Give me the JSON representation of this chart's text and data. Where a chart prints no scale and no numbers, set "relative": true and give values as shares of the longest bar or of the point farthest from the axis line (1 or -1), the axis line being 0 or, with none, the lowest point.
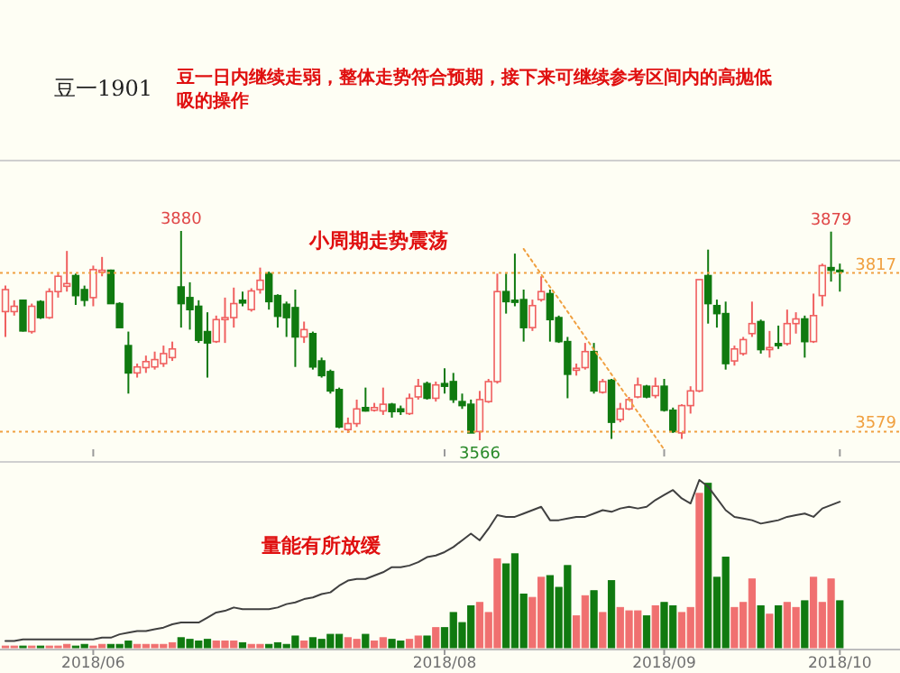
{
  "chart_data": [
    {
      "type": "candlestick",
      "title": "豆一1901",
      "subtitle": "豆一日内继续走弱，整体走势符合预期，接下来可继续参考区间内的高抛低吸的操作",
      "tick_labels": false,
      "categories": [
        null,
        null,
        null,
        null,
        null,
        null,
        null,
        null,
        null,
        null,
        "2018/06",
        null,
        null,
        null,
        null,
        null,
        null,
        null,
        null,
        null,
        null,
        null,
        null,
        null,
        null,
        null,
        null,
        null,
        null,
        null,
        null,
        null,
        null,
        null,
        null,
        null,
        null,
        null,
        null,
        null,
        null,
        null,
        null,
        null,
        null,
        null,
        null,
        null,
        null,
        null,
        "2018/08",
        null,
        null,
        null,
        null,
        null,
        null,
        null,
        null,
        null,
        null,
        null,
        null,
        null,
        null,
        null,
        null,
        null,
        null,
        null,
        null,
        null,
        null,
        null,
        null,
        "2018/09",
        null,
        null,
        null,
        null,
        null,
        null,
        null,
        null,
        null,
        null,
        null,
        null,
        null,
        null,
        null,
        null,
        null,
        null,
        null,
        "2018/10"
      ],
      "ohlc": [
        [
          3759,
          3798,
          3721,
          3792
        ],
        [
          3759,
          3776,
          3753,
          3767
        ],
        [
          3776,
          3777,
          3729,
          3730
        ],
        [
          3729,
          3771,
          3726,
          3767
        ],
        [
          3774,
          3776,
          3748,
          3750
        ],
        [
          3750,
          3794,
          3748,
          3789
        ],
        [
          3789,
          3816,
          3780,
          3812
        ],
        [
          3797,
          3850,
          3789,
          3801
        ],
        [
          3813,
          3816,
          3769,
          3783
        ],
        [
          3792,
          3798,
          3767,
          3776
        ],
        [
          3780,
          3828,
          3767,
          3822
        ],
        [
          3818,
          3841,
          3812,
          3821
        ],
        [
          3821,
          3822,
          3771,
          3771
        ],
        [
          3771,
          3773,
          3735,
          3735
        ],
        [
          3708,
          3729,
          3636,
          3667
        ],
        [
          3667,
          3681,
          3660,
          3676
        ],
        [
          3675,
          3693,
          3667,
          3684
        ],
        [
          3676,
          3699,
          3672,
          3687
        ],
        [
          3681,
          3708,
          3676,
          3696
        ],
        [
          3690,
          3714,
          3685,
          3703
        ],
        [
          3796,
          3880,
          3735,
          3771
        ],
        [
          3780,
          3803,
          3732,
          3762
        ],
        [
          3767,
          3776,
          3712,
          3716
        ],
        [
          3729,
          3758,
          3660,
          3712
        ],
        [
          3714,
          3753,
          3712,
          3747
        ],
        [
          3747,
          3780,
          3712,
          3750
        ],
        [
          3750,
          3795,
          3735,
          3771
        ],
        [
          3776,
          3789,
          3767,
          3772
        ],
        [
          3762,
          3794,
          3759,
          3790
        ],
        [
          3792,
          3825,
          3786,
          3806
        ],
        [
          3816,
          3819,
          3762,
          3774
        ],
        [
          3783,
          3785,
          3735,
          3752
        ],
        [
          3770,
          3774,
          3721,
          3750
        ],
        [
          3765,
          3792,
          3676,
          3721
        ],
        [
          3721,
          3744,
          3712,
          3732
        ],
        [
          3726,
          3729,
          3672,
          3676
        ],
        [
          3685,
          3690,
          3660,
          3663
        ],
        [
          3669,
          3672,
          3636,
          3640
        ],
        [
          3642,
          3645,
          3584,
          3586
        ],
        [
          3582,
          3600,
          3577,
          3591
        ],
        [
          3591,
          3627,
          3586,
          3613
        ],
        [
          3615,
          3645,
          3609,
          3610
        ],
        [
          3611,
          3622,
          3609,
          3615
        ],
        [
          3610,
          3645,
          3604,
          3620
        ],
        [
          3620,
          3622,
          3600,
          3609
        ],
        [
          3613,
          3618,
          3604,
          3609
        ],
        [
          3606,
          3636,
          3604,
          3629
        ],
        [
          3631,
          3658,
          3627,
          3647
        ],
        [
          3651,
          3654,
          3627,
          3629
        ],
        [
          3629,
          3654,
          3624,
          3649
        ],
        [
          3651,
          3674,
          3636,
          3647
        ],
        [
          3654,
          3667,
          3622,
          3627
        ],
        [
          3624,
          3636,
          3613,
          3618
        ],
        [
          3620,
          3627,
          3577,
          3577
        ],
        [
          3579,
          3640,
          3566,
          3627
        ],
        [
          3624,
          3658,
          3622,
          3654
        ],
        [
          3654,
          3816,
          3651,
          3789
        ],
        [
          3789,
          3816,
          3756,
          3774
        ],
        [
          3776,
          3846,
          3767,
          3773
        ],
        [
          3777,
          3792,
          3714,
          3735
        ],
        [
          3735,
          3777,
          3730,
          3768
        ],
        [
          3777,
          3812,
          3774,
          3789
        ],
        [
          3786,
          3792,
          3714,
          3747
        ],
        [
          3750,
          3753,
          3712,
          3714
        ],
        [
          3714,
          3721,
          3629,
          3665
        ],
        [
          3671,
          3681,
          3663,
          3674
        ],
        [
          3675,
          3712,
          3672,
          3699
        ],
        [
          3699,
          3712,
          3636,
          3640
        ],
        [
          3638,
          3658,
          3636,
          3654
        ],
        [
          3656,
          3658,
          3568,
          3593
        ],
        [
          3597,
          3622,
          3593,
          3613
        ],
        [
          3613,
          3631,
          3611,
          3627
        ],
        [
          3631,
          3660,
          3629,
          3649
        ],
        [
          3647,
          3649,
          3629,
          3631
        ],
        [
          3633,
          3660,
          3629,
          3647
        ],
        [
          3647,
          3658,
          3609,
          3611
        ],
        [
          3611,
          3615,
          3577,
          3579
        ],
        [
          3577,
          3620,
          3568,
          3618
        ],
        [
          3618,
          3647,
          3606,
          3640
        ],
        [
          3640,
          3807,
          3638,
          3807
        ],
        [
          3813,
          3852,
          3741,
          3771
        ],
        [
          3768,
          3777,
          3735,
          3756
        ],
        [
          3756,
          3774,
          3672,
          3681
        ],
        [
          3685,
          3708,
          3678,
          3703
        ],
        [
          3696,
          3721,
          3693,
          3717
        ],
        [
          3726,
          3774,
          3721,
          3741
        ],
        [
          3744,
          3747,
          3696,
          3702
        ],
        [
          3702,
          3730,
          3690,
          3705
        ],
        [
          3711,
          3738,
          3703,
          3708
        ],
        [
          3711,
          3762,
          3708,
          3741
        ],
        [
          3741,
          3758,
          3726,
          3748
        ],
        [
          3748,
          3753,
          3690,
          3714
        ],
        [
          3714,
          3786,
          3712,
          3753
        ],
        [
          3783,
          3831,
          3767,
          3828
        ],
        [
          3825,
          3879,
          3804,
          3821
        ],
        [
          3821,
          3831,
          3789,
          3820
        ]
      ],
      "series": [
        {
          "type": "line",
          "values": [
            null,
            null,
            null,
            null,
            null,
            null,
            null,
            null,
            null,
            null,
            null,
            null,
            null,
            null,
            null,
            null,
            null,
            null,
            null,
            null,
            null,
            null,
            null,
            null,
            null,
            null,
            null,
            null,
            null,
            null,
            null,
            null,
            null,
            null,
            null,
            null,
            null,
            null,
            null,
            null,
            null,
            null,
            null,
            null,
            null,
            null,
            null,
            null,
            null,
            null,
            null,
            null,
            null,
            null,
            null,
            null,
            null,
            null,
            null,
            3853,
            3834,
            3815,
            3796,
            3778,
            3759,
            3740,
            3721,
            3702,
            3684,
            3665,
            3646,
            3627,
            3608,
            3590,
            3571,
            3552,
            null,
            null,
            null,
            null,
            null,
            null,
            null,
            null,
            null,
            null,
            null,
            null,
            null,
            null,
            null,
            null,
            null,
            null,
            null,
            null
          ],
          "color": "#f0a040",
          "line_style": "dotted"
        }
      ],
      "ref_lines": [
        {
          "axis": "y",
          "value": 3817,
          "label": "3817",
          "color": "#f0a040",
          "line_style": "dotted"
        },
        {
          "axis": "y",
          "value": 3579,
          "label": "3579",
          "color": "#f0a040",
          "line_style": "dotted"
        }
      ],
      "annotations": [
        "小周期走势震荡",
        {
          "text": "3880",
          "y": 3880
        },
        {
          "text": "3879",
          "y": 3879
        },
        {
          "text": "3566",
          "y": 3566
        }
      ]
    },
    {
      "type": "bar",
      "relative": true,
      "tick_labels": "x",
      "categories": [
        null,
        null,
        null,
        null,
        null,
        null,
        null,
        null,
        null,
        null,
        "2018/06",
        null,
        null,
        null,
        null,
        null,
        null,
        null,
        null,
        null,
        null,
        null,
        null,
        null,
        null,
        null,
        null,
        null,
        null,
        null,
        null,
        null,
        null,
        null,
        null,
        null,
        null,
        null,
        null,
        null,
        null,
        null,
        null,
        null,
        null,
        null,
        null,
        null,
        null,
        null,
        "2018/08",
        null,
        null,
        null,
        null,
        null,
        null,
        null,
        null,
        null,
        null,
        null,
        null,
        null,
        null,
        null,
        null,
        null,
        null,
        null,
        null,
        null,
        null,
        null,
        null,
        "2018/09",
        null,
        null,
        null,
        null,
        null,
        null,
        null,
        null,
        null,
        null,
        null,
        null,
        null,
        null,
        null,
        null,
        null,
        null,
        null,
        "2018/10"
      ],
      "series": [
        {
          "type": "bar",
          "values": [
            0.01,
            0.01,
            0.01,
            0.01,
            0.01,
            0.01,
            0.01,
            0.02,
            0.01,
            0.02,
            0.01,
            0.02,
            0.02,
            0.02,
            0.04,
            0.02,
            0.02,
            0.02,
            0.02,
            0.03,
            0.06,
            0.05,
            0.04,
            0.05,
            0.04,
            0.04,
            0.04,
            0.03,
            0.02,
            0.02,
            0.02,
            0.03,
            0.02,
            0.07,
            0.04,
            0.06,
            0.05,
            0.08,
            0.08,
            0.06,
            0.05,
            0.08,
            0.04,
            0.06,
            0.05,
            0.04,
            0.05,
            0.07,
            0.07,
            0.12,
            0.12,
            0.21,
            0.15,
            0.25,
            0.27,
            0.21,
            0.53,
            0.5,
            0.56,
            0.32,
            0.3,
            0.42,
            0.43,
            0.36,
            0.49,
            0.19,
            0.31,
            0.34,
            0.21,
            0.4,
            0.24,
            0.22,
            0.22,
            0.19,
            0.25,
            0.27,
            0.25,
            0.21,
            0.24,
            0.92,
            0.98,
            0.42,
            0.54,
            0.24,
            0.27,
            0.41,
            0.25,
            0.2,
            0.25,
            0.27,
            0.24,
            0.28,
            0.42,
            0.27,
            0.41,
            0.28
          ],
          "colors": [
            "#f07070",
            "#f07070",
            "#107a10",
            "#f07070",
            "#107a10",
            "#f07070",
            "#f07070",
            "#f07070",
            "#107a10",
            "#107a10",
            "#f07070",
            "#f07070",
            "#107a10",
            "#107a10",
            "#107a10",
            "#f07070",
            "#f07070",
            "#f07070",
            "#f07070",
            "#f07070",
            "#107a10",
            "#107a10",
            "#107a10",
            "#107a10",
            "#f07070",
            "#f07070",
            "#f07070",
            "#107a10",
            "#f07070",
            "#f07070",
            "#107a10",
            "#107a10",
            "#107a10",
            "#107a10",
            "#f07070",
            "#107a10",
            "#107a10",
            "#107a10",
            "#107a10",
            "#f07070",
            "#f07070",
            "#107a10",
            "#f07070",
            "#f07070",
            "#107a10",
            "#107a10",
            "#f07070",
            "#f07070",
            "#107a10",
            "#f07070",
            "#107a10",
            "#107a10",
            "#107a10",
            "#107a10",
            "#f07070",
            "#f07070",
            "#f07070",
            "#107a10",
            "#107a10",
            "#107a10",
            "#f07070",
            "#f07070",
            "#107a10",
            "#107a10",
            "#107a10",
            "#f07070",
            "#f07070",
            "#107a10",
            "#f07070",
            "#107a10",
            "#f07070",
            "#f07070",
            "#f07070",
            "#107a10",
            "#f07070",
            "#107a10",
            "#107a10",
            "#f07070",
            "#f07070",
            "#f07070",
            "#107a10",
            "#107a10",
            "#107a10",
            "#f07070",
            "#f07070",
            "#f07070",
            "#107a10",
            "#f07070",
            "#107a10",
            "#f07070",
            "#f07070",
            "#107a10",
            "#f07070",
            "#f07070",
            "#f07070",
            "#107a10"
          ]
        },
        {
          "type": "line",
          "color": "#404040",
          "values": [
            0.04,
            0.04,
            0.05,
            0.05,
            0.05,
            0.05,
            0.05,
            0.05,
            0.05,
            0.05,
            0.05,
            0.06,
            0.06,
            0.08,
            0.09,
            0.1,
            0.1,
            0.11,
            0.12,
            0.14,
            0.15,
            0.15,
            0.15,
            0.18,
            0.21,
            0.22,
            0.24,
            0.23,
            0.23,
            0.23,
            0.23,
            0.24,
            0.26,
            0.27,
            0.29,
            0.3,
            0.32,
            0.33,
            0.37,
            0.4,
            0.41,
            0.41,
            0.43,
            0.45,
            0.48,
            0.48,
            0.49,
            0.51,
            0.54,
            0.55,
            0.57,
            0.6,
            0.64,
            0.68,
            0.64,
            0.71,
            0.79,
            0.78,
            0.78,
            0.8,
            0.82,
            0.84,
            0.76,
            0.76,
            0.77,
            0.78,
            0.78,
            0.8,
            0.82,
            0.81,
            0.83,
            0.84,
            0.83,
            0.84,
            0.88,
            0.91,
            0.94,
            0.89,
            0.86,
            1,
            0.96,
            0.89,
            0.82,
            0.78,
            0.77,
            0.76,
            0.74,
            0.75,
            0.76,
            0.78,
            0.79,
            0.8,
            0.78,
            0.83,
            0.85,
            0.87
          ]
        }
      ],
      "annotations": [
        "量能有所放缓"
      ]
    }
  ]
}
